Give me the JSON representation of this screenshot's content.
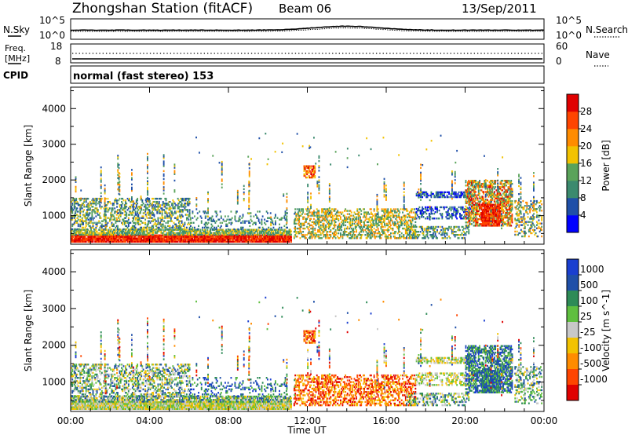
{
  "header": {
    "station": "Zhongshan Station (fitACF)",
    "beam": "Beam 06",
    "date": "13/Sep/2011"
  },
  "noise_panel": {
    "left_label": "N.Sky",
    "right_label": "N.Search",
    "left_ticks": [
      "10^5",
      "10^0"
    ],
    "right_ticks": [
      "10^5",
      "10^0"
    ]
  },
  "freq_panel": {
    "left_label_1": "Freq.",
    "left_label_2": "[MHz]",
    "right_label": "Nave",
    "left_ticks": [
      "18",
      "8"
    ],
    "right_ticks": [
      "60",
      "0"
    ]
  },
  "cpid_panel": {
    "label": "CPID",
    "value": "normal (fast stereo) 153"
  },
  "colors": {
    "power": [
      "#0000ff",
      "#1f4fa8",
      "#3b8a6e",
      "#5aa35a",
      "#f2c200",
      "#ff8c00",
      "#ff4500",
      "#e00000"
    ],
    "velocity": [
      "#e00000",
      "#ff4500",
      "#ff8c00",
      "#f2c200",
      "#c8c8c8",
      "#5fbf3f",
      "#2e8b57",
      "#1f4fa8",
      "#1a3fd0"
    ]
  },
  "chart_data": [
    {
      "type": "heatmap",
      "panel": "power",
      "ylabel": "Slant Range [km]",
      "xlabel": "",
      "x_ticks": [
        "00:00",
        "04:00",
        "08:00",
        "12:00",
        "16:00",
        "20:00",
        "00:00"
      ],
      "y_ticks": [
        1000,
        2000,
        3000,
        4000
      ],
      "ylim": [
        200,
        4600
      ],
      "colorbar": {
        "label": "Power [dB]",
        "ticks": [
          4,
          8,
          12,
          16,
          20,
          24,
          28
        ]
      },
      "features": [
        {
          "t_start": 0.0,
          "t_end": 11.2,
          "r_start": 250,
          "r_end": 600,
          "level": "high"
        },
        {
          "t_start": 0.0,
          "t_end": 6.0,
          "r_start": 500,
          "r_end": 1500,
          "level": "medium"
        },
        {
          "t_start": 11.5,
          "t_end": 17.0,
          "r_start": 400,
          "r_end": 1200,
          "level": "medium"
        },
        {
          "t_start": 11.8,
          "t_end": 12.4,
          "r_start": 2100,
          "r_end": 2400,
          "level": "high"
        },
        {
          "t_start": 17.5,
          "t_end": 20.2,
          "r_start": 1500,
          "r_end": 1700,
          "level": "low"
        },
        {
          "t_start": 20.0,
          "t_end": 22.3,
          "r_start": 700,
          "r_end": 2000,
          "level": "high"
        }
      ]
    },
    {
      "type": "heatmap",
      "panel": "velocity",
      "ylabel": "Slant Range [km]",
      "xlabel": "Time UT",
      "x_ticks": [
        "00:00",
        "04:00",
        "08:00",
        "12:00",
        "16:00",
        "20:00",
        "00:00"
      ],
      "y_ticks": [
        1000,
        2000,
        3000,
        4000
      ],
      "ylim": [
        200,
        4600
      ],
      "colorbar": {
        "label": "Velocity [m s^-1]",
        "ticks": [
          1000,
          500,
          100,
          25,
          -25,
          -100,
          -500,
          -1000
        ]
      }
    }
  ]
}
